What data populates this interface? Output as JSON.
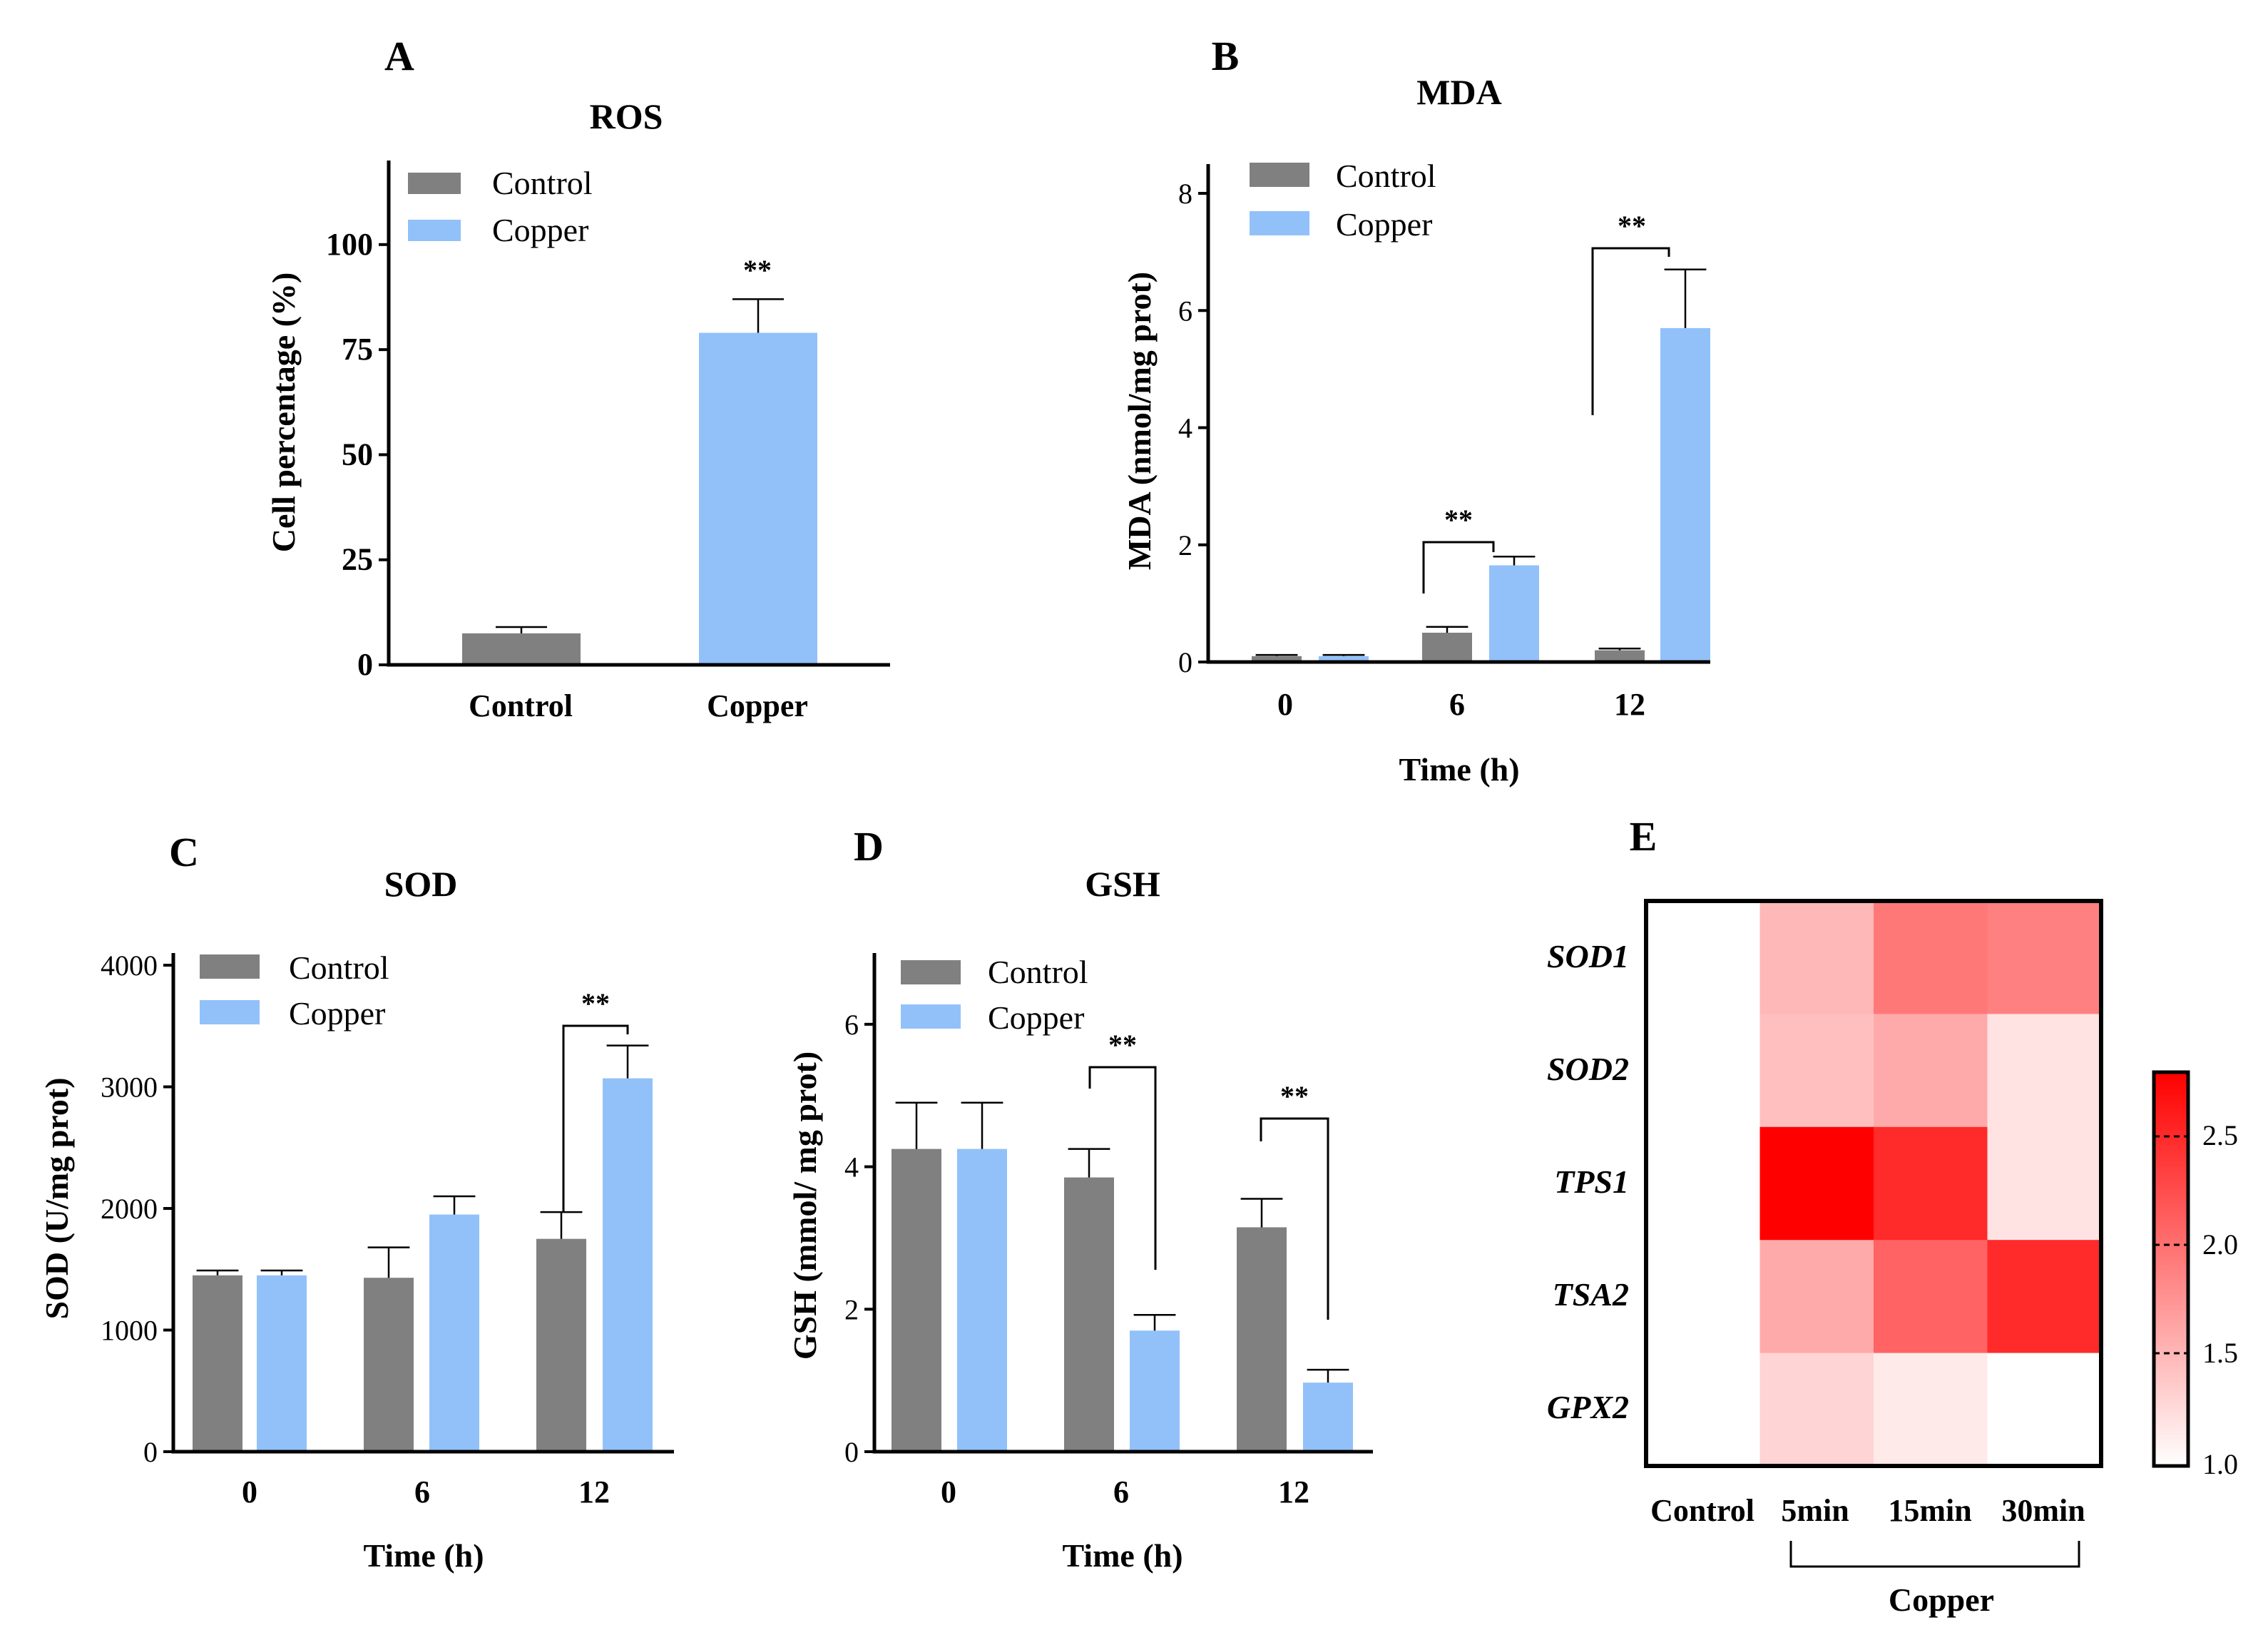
{
  "colors": {
    "control": "#808080",
    "copper": "#92C1F9",
    "heat_low": "#ffffff",
    "heat_high": "#ff0000"
  },
  "chart_data": [
    {
      "panel": "A",
      "type": "bar",
      "title": "ROS",
      "xlabel": "",
      "ylabel": "Cell percentage (%)",
      "ylim": [
        0,
        120
      ],
      "yticks": [
        0,
        25,
        50,
        75,
        100
      ],
      "categories": [
        "Control",
        "Copper"
      ],
      "series": [
        {
          "name": "Control",
          "values": [
            7.5,
            null
          ],
          "errors": [
            1.5,
            null
          ]
        },
        {
          "name": "Copper",
          "values": [
            null,
            79
          ],
          "errors": [
            null,
            8
          ]
        }
      ],
      "legend": [
        "Control",
        "Copper"
      ],
      "significance": [
        {
          "category": "Copper",
          "label": "**"
        }
      ]
    },
    {
      "panel": "B",
      "type": "bar",
      "title": "MDA",
      "xlabel": "Time (h)",
      "ylabel": "MDA (nmol/mg prot)",
      "ylim": [
        0,
        8.5
      ],
      "yticks": [
        0,
        2,
        4,
        6,
        8
      ],
      "categories": [
        "0",
        "6",
        "12"
      ],
      "series": [
        {
          "name": "Control",
          "values": [
            0.1,
            0.5,
            0.2
          ],
          "errors": [
            0.02,
            0.1,
            0.03
          ]
        },
        {
          "name": "Copper",
          "values": [
            0.1,
            1.65,
            5.7
          ],
          "errors": [
            0.02,
            0.15,
            1.0
          ]
        }
      ],
      "legend": [
        "Control",
        "Copper"
      ],
      "significance": [
        {
          "category": "6",
          "label": "**"
        },
        {
          "category": "12",
          "label": "**"
        }
      ]
    },
    {
      "panel": "C",
      "type": "bar",
      "title": "SOD",
      "xlabel": "Time (h)",
      "ylabel": "SOD (U/mg prot)",
      "ylim": [
        0,
        4100
      ],
      "yticks": [
        0,
        1000,
        2000,
        3000,
        4000
      ],
      "categories": [
        "0",
        "6",
        "12"
      ],
      "series": [
        {
          "name": "Control",
          "values": [
            1450,
            1430,
            1750
          ],
          "errors": [
            40,
            250,
            220
          ]
        },
        {
          "name": "Copper",
          "values": [
            1450,
            1950,
            3070
          ],
          "errors": [
            40,
            150,
            270
          ]
        }
      ],
      "legend": [
        "Control",
        "Copper"
      ],
      "significance": [
        {
          "category": "12",
          "label": "**"
        }
      ]
    },
    {
      "panel": "D",
      "type": "bar",
      "title": "GSH",
      "xlabel": "Time (h)",
      "ylabel": "GSH (mmol/ mg prot)",
      "ylim": [
        0,
        7
      ],
      "yticks": [
        0,
        2,
        4,
        6
      ],
      "categories": [
        "0",
        "6",
        "12"
      ],
      "series": [
        {
          "name": "Control",
          "values": [
            4.25,
            3.85,
            3.15
          ],
          "errors": [
            0.65,
            0.4,
            0.4
          ]
        },
        {
          "name": "Copper",
          "values": [
            4.25,
            1.7,
            0.97
          ],
          "errors": [
            0.65,
            0.22,
            0.18
          ]
        }
      ],
      "legend": [
        "Control",
        "Copper"
      ],
      "significance": [
        {
          "category": "6",
          "label": "**"
        },
        {
          "category": "12",
          "label": "**"
        }
      ]
    },
    {
      "panel": "E",
      "type": "heatmap",
      "rows": [
        "SOD1",
        "SOD2",
        "TPS1",
        "TSA2",
        "GPX2"
      ],
      "columns": [
        "Control",
        "5min",
        "15min",
        "30min"
      ],
      "column_group": {
        "label": "Copper",
        "columns": [
          "5min",
          "15min",
          "30min"
        ]
      },
      "values": [
        [
          1.0,
          1.5,
          1.95,
          1.9
        ],
        [
          1.0,
          1.45,
          1.6,
          1.2
        ],
        [
          1.0,
          2.8,
          2.5,
          1.2
        ],
        [
          1.0,
          1.6,
          2.1,
          2.5
        ],
        [
          1.0,
          1.3,
          1.15,
          1.0
        ]
      ],
      "colorbar": {
        "min": 1.0,
        "max": 2.8,
        "ticks": [
          "1.0",
          "1.5",
          "2.0",
          "2.5"
        ]
      }
    }
  ]
}
